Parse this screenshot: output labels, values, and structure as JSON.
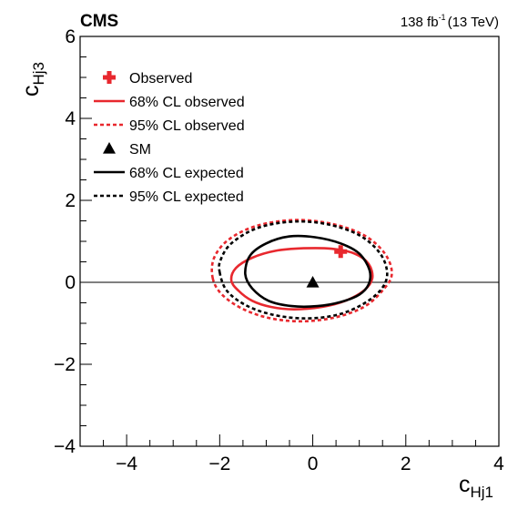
{
  "chart_data": {
    "type": "scatter",
    "header": {
      "experiment": "CMS",
      "lumi_value": "138 fb",
      "lumi_exp": "-1",
      "energy": "(13 TeV)"
    },
    "xlabel": {
      "main": "c",
      "sub": "Hj1"
    },
    "ylabel": {
      "main": "c",
      "sub": "Hj3"
    },
    "xlim": [
      -5,
      4
    ],
    "ylim": [
      -4,
      6
    ],
    "x_ticks": [
      -4,
      -2,
      0,
      2,
      4
    ],
    "y_ticks": [
      -4,
      -2,
      0,
      2,
      4,
      6
    ],
    "x_tick_labels": [
      "−4",
      "−2",
      "0",
      "2",
      "4"
    ],
    "y_tick_labels": [
      "−4",
      "−2",
      "0",
      "2",
      "4",
      "6"
    ],
    "reference_line_y": 0,
    "observed": {
      "x": 0.6,
      "y": 0.75,
      "color": "#e8282e"
    },
    "sm": {
      "x": 0.0,
      "y": 0.0,
      "color": "#000000"
    },
    "contours": [
      {
        "name": "68% CL observed",
        "color": "#e8282e",
        "dash": "solid",
        "points": [
          [
            -1.75,
            0.05
          ],
          [
            -1.6,
            -0.2
          ],
          [
            -1.3,
            -0.45
          ],
          [
            -0.9,
            -0.6
          ],
          [
            -0.4,
            -0.66
          ],
          [
            0.2,
            -0.6
          ],
          [
            0.7,
            -0.45
          ],
          [
            1.1,
            -0.2
          ],
          [
            1.28,
            0.1
          ],
          [
            1.2,
            0.45
          ],
          [
            0.9,
            0.7
          ],
          [
            0.4,
            0.82
          ],
          [
            -0.2,
            0.83
          ],
          [
            -0.8,
            0.77
          ],
          [
            -1.3,
            0.6
          ],
          [
            -1.65,
            0.35
          ]
        ]
      },
      {
        "name": "95% CL observed",
        "color": "#e8282e",
        "dash": "dotted",
        "points": [
          [
            -2.15,
            0.1
          ],
          [
            -1.95,
            -0.3
          ],
          [
            -1.5,
            -0.65
          ],
          [
            -0.9,
            -0.88
          ],
          [
            -0.2,
            -0.95
          ],
          [
            0.5,
            -0.85
          ],
          [
            1.1,
            -0.6
          ],
          [
            1.5,
            -0.2
          ],
          [
            1.7,
            0.2
          ],
          [
            1.55,
            0.7
          ],
          [
            1.1,
            1.15
          ],
          [
            0.4,
            1.43
          ],
          [
            -0.4,
            1.52
          ],
          [
            -1.2,
            1.38
          ],
          [
            -1.8,
            1.05
          ],
          [
            -2.12,
            0.6
          ]
        ]
      },
      {
        "name": "68% CL expected",
        "color": "#000000",
        "dash": "solid",
        "points": [
          [
            -1.45,
            0.2
          ],
          [
            -1.3,
            -0.15
          ],
          [
            -0.95,
            -0.45
          ],
          [
            -0.45,
            -0.58
          ],
          [
            0.1,
            -0.58
          ],
          [
            0.6,
            -0.48
          ],
          [
            1.0,
            -0.3
          ],
          [
            1.2,
            -0.05
          ],
          [
            1.22,
            0.3
          ],
          [
            1.0,
            0.7
          ],
          [
            0.6,
            0.95
          ],
          [
            0.05,
            1.1
          ],
          [
            -0.5,
            1.12
          ],
          [
            -1.0,
            0.95
          ],
          [
            -1.35,
            0.65
          ]
        ]
      },
      {
        "name": "95% CL expected",
        "color": "#000000",
        "dash": "dotted",
        "points": [
          [
            -2.0,
            0.25
          ],
          [
            -1.85,
            -0.2
          ],
          [
            -1.45,
            -0.55
          ],
          [
            -0.9,
            -0.78
          ],
          [
            -0.2,
            -0.88
          ],
          [
            0.5,
            -0.8
          ],
          [
            1.05,
            -0.55
          ],
          [
            1.45,
            -0.2
          ],
          [
            1.6,
            0.2
          ],
          [
            1.45,
            0.7
          ],
          [
            1.0,
            1.15
          ],
          [
            0.3,
            1.42
          ],
          [
            -0.45,
            1.48
          ],
          [
            -1.2,
            1.32
          ],
          [
            -1.75,
            0.95
          ],
          [
            -1.98,
            0.55
          ]
        ]
      }
    ],
    "legend": {
      "placement": "top-left",
      "entries": [
        {
          "label": "Observed",
          "marker": "cross",
          "color": "#e8282e"
        },
        {
          "label": "68% CL observed",
          "marker": "line",
          "color": "#e8282e",
          "dash": "solid"
        },
        {
          "label": "95% CL observed",
          "marker": "line",
          "color": "#e8282e",
          "dash": "dotted"
        },
        {
          "label": "SM",
          "marker": "triangle",
          "color": "#000000"
        },
        {
          "label": "68% CL expected",
          "marker": "line",
          "color": "#000000",
          "dash": "solid"
        },
        {
          "label": "95% CL expected",
          "marker": "line",
          "color": "#000000",
          "dash": "dotted"
        }
      ]
    },
    "grid": false
  }
}
